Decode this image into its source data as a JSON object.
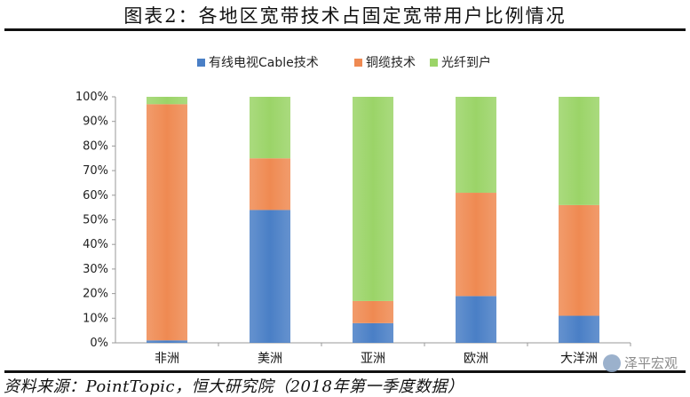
{
  "header": {
    "title": "图表2：各地区宽带技术占固定宽带用户比例情况"
  },
  "footer": {
    "source": "资料来源：PointTopic，恒大研究院（2018年第一季度数据）",
    "watermark": "泽平宏观"
  },
  "colors": {
    "cable": "#4a7fc6",
    "copper": "#ef8a52",
    "fiber": "#9bd468"
  },
  "chart_data": {
    "type": "bar",
    "stacked": true,
    "categories": [
      "非洲",
      "美洲",
      "亚洲",
      "欧洲",
      "大洋洲"
    ],
    "series": [
      {
        "name": "有线电视Cable技术",
        "values": [
          1,
          54,
          8,
          19,
          11
        ]
      },
      {
        "name": "铜缆技术",
        "values": [
          96,
          21,
          9,
          42,
          45
        ]
      },
      {
        "name": "光纤到户",
        "values": [
          3,
          25,
          83,
          39,
          44
        ]
      }
    ],
    "ylim": [
      0,
      100
    ],
    "yticks": [
      "0%",
      "10%",
      "20%",
      "30%",
      "40%",
      "50%",
      "60%",
      "70%",
      "80%",
      "90%",
      "100%"
    ],
    "legend_position": "top",
    "grid": false
  }
}
